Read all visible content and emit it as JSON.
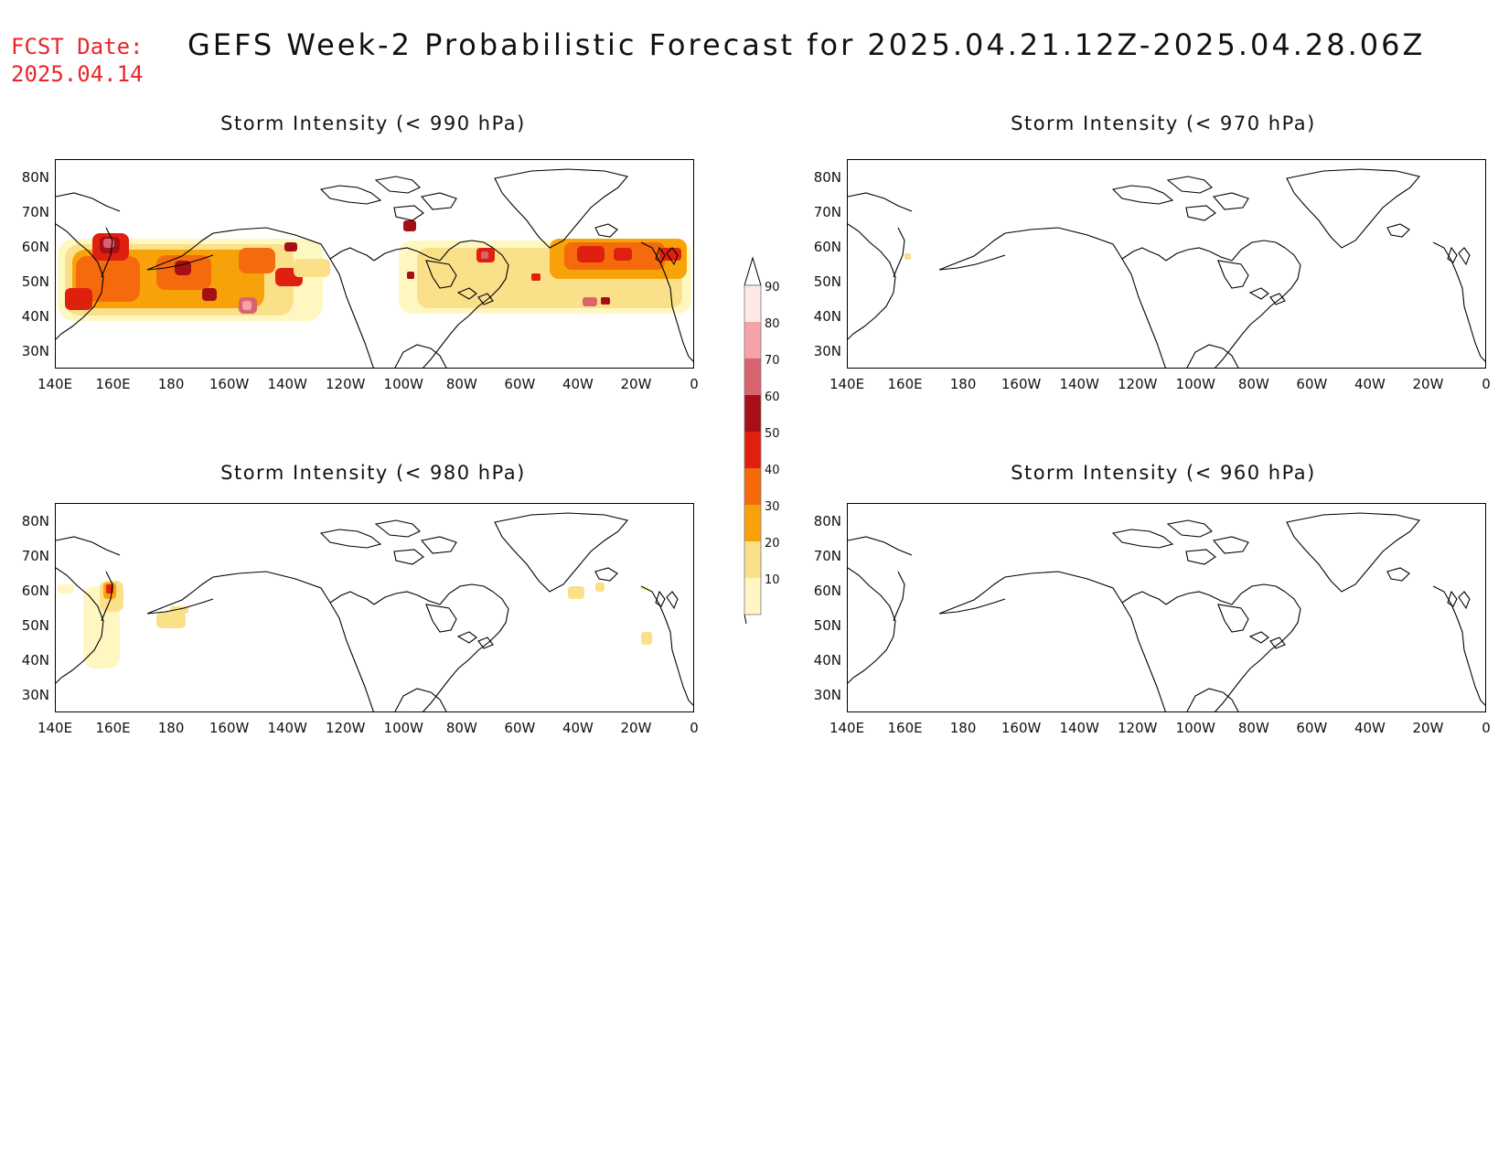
{
  "header": {
    "fcst_label": "FCST Date:",
    "fcst_date": "2025.04.14",
    "title": "GEFS Week-2 Probabilistic Forecast for 2025.04.21.12Z-2025.04.28.06Z"
  },
  "panels": [
    {
      "id": "p990",
      "title": "Storm Intensity (< 990 hPa)"
    },
    {
      "id": "p970",
      "title": "Storm Intensity (< 970 hPa)"
    },
    {
      "id": "p980",
      "title": "Storm Intensity (< 980 hPa)"
    },
    {
      "id": "p960",
      "title": "Storm Intensity (< 960 hPa)"
    }
  ],
  "axes": {
    "lat_labels": [
      "80N",
      "70N",
      "60N",
      "50N",
      "40N",
      "30N"
    ],
    "lon_labels": [
      "140E",
      "160E",
      "180",
      "160W",
      "140W",
      "120W",
      "100W",
      "80W",
      "60W",
      "40W",
      "20W",
      "0"
    ]
  },
  "legend": {
    "labels": [
      "90",
      "80",
      "70",
      "60",
      "50",
      "40",
      "30",
      "20",
      "10"
    ],
    "colors": [
      "#ffe8e8",
      "#f4a3a8",
      "#d96470",
      "#a50f15",
      "#e0200f",
      "#f46a0c",
      "#f8a20a",
      "#fbe08a",
      "#fff7c2"
    ]
  }
}
